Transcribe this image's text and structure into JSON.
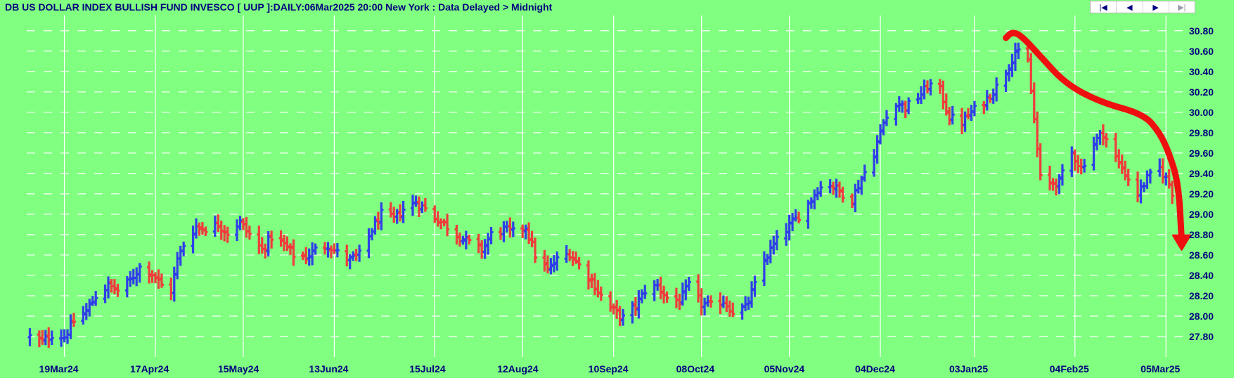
{
  "title": "DB US DOLLAR INDEX BULLISH FUND INVESCO [ UUP ]:DAILY:06Mar2025 20:00 New York : Data Delayed > Midnight",
  "navigation": {
    "first": "|◀",
    "prev": "◀",
    "next": "▶",
    "last": "▶|"
  },
  "colors": {
    "background": "#80ff80",
    "up_bar": "#2f3fe8",
    "down_bar": "#f03c3c",
    "grid": "#ffffff",
    "annotation": "#ee1010",
    "text": "#00007f"
  },
  "chart_data": {
    "type": "ohlc",
    "symbol": "UUP",
    "interval": "daily",
    "grid": true,
    "y_axis_side": "right",
    "ylim": [
      27.6,
      30.95
    ],
    "yticks": [
      27.8,
      28.0,
      28.2,
      28.4,
      28.6,
      28.8,
      29.0,
      29.2,
      29.4,
      29.6,
      29.8,
      30.0,
      30.2,
      30.4,
      30.6,
      30.8
    ],
    "ytick_labels": [
      "27.80",
      "28.00",
      "28.20",
      "28.40",
      "28.60",
      "28.80",
      "29.00",
      "29.20",
      "29.40",
      "29.60",
      "29.80",
      "30.00",
      "30.20",
      "30.40",
      "30.60",
      "30.80"
    ],
    "xlim": [
      "2024-03-07",
      "2025-03-11"
    ],
    "xticks": [
      "2024-03-19",
      "2024-04-17",
      "2024-05-15",
      "2024-06-13",
      "2024-07-15",
      "2024-08-12",
      "2024-09-10",
      "2024-10-08",
      "2024-11-05",
      "2024-12-04",
      "2025-01-03",
      "2025-02-04",
      "2025-03-05"
    ],
    "xtick_labels": [
      "19Mar24",
      "17Apr24",
      "15May24",
      "13Jun24",
      "15Jul24",
      "12Aug24",
      "10Sep24",
      "08Oct24",
      "05Nov24",
      "04Dec24",
      "03Jan25",
      "04Feb25",
      "05Mar25"
    ],
    "closes": [
      [
        "2024-03-08",
        27.8
      ],
      [
        "2024-03-12",
        27.75
      ],
      [
        "2024-03-15",
        27.82
      ],
      [
        "2024-03-19",
        27.8
      ],
      [
        "2024-03-22",
        27.95
      ],
      [
        "2024-03-26",
        28.05
      ],
      [
        "2024-03-29",
        28.2
      ],
      [
        "2024-04-02",
        28.3
      ],
      [
        "2024-04-05",
        28.25
      ],
      [
        "2024-04-09",
        28.35
      ],
      [
        "2024-04-12",
        28.48
      ],
      [
        "2024-04-16",
        28.42
      ],
      [
        "2024-04-19",
        28.3
      ],
      [
        "2024-04-22",
        28.25
      ],
      [
        "2024-04-24",
        28.55
      ],
      [
        "2024-04-26",
        28.7
      ],
      [
        "2024-04-30",
        28.88
      ],
      [
        "2024-05-03",
        28.86
      ],
      [
        "2024-05-07",
        28.9
      ],
      [
        "2024-05-10",
        28.82
      ],
      [
        "2024-05-14",
        28.92
      ],
      [
        "2024-05-17",
        28.8
      ],
      [
        "2024-05-21",
        28.65
      ],
      [
        "2024-05-24",
        28.78
      ],
      [
        "2024-05-28",
        28.7
      ],
      [
        "2024-05-31",
        28.6
      ],
      [
        "2024-06-04",
        28.58
      ],
      [
        "2024-06-07",
        28.65
      ],
      [
        "2024-06-11",
        28.7
      ],
      [
        "2024-06-14",
        28.62
      ],
      [
        "2024-06-18",
        28.55
      ],
      [
        "2024-06-21",
        28.6
      ],
      [
        "2024-06-25",
        28.85
      ],
      [
        "2024-06-28",
        29.0
      ],
      [
        "2024-07-02",
        28.95
      ],
      [
        "2024-07-05",
        29.05
      ],
      [
        "2024-07-09",
        29.12
      ],
      [
        "2024-07-12",
        29.05
      ],
      [
        "2024-07-16",
        28.95
      ],
      [
        "2024-07-19",
        28.88
      ],
      [
        "2024-07-23",
        28.78
      ],
      [
        "2024-07-26",
        28.72
      ],
      [
        "2024-07-30",
        28.65
      ],
      [
        "2024-08-02",
        28.8
      ],
      [
        "2024-08-06",
        28.85
      ],
      [
        "2024-08-09",
        28.82
      ],
      [
        "2024-08-13",
        28.88
      ],
      [
        "2024-08-16",
        28.6
      ],
      [
        "2024-08-20",
        28.45
      ],
      [
        "2024-08-23",
        28.55
      ],
      [
        "2024-08-27",
        28.62
      ],
      [
        "2024-08-30",
        28.5
      ],
      [
        "2024-09-03",
        28.35
      ],
      [
        "2024-09-06",
        28.2
      ],
      [
        "2024-09-10",
        28.05
      ],
      [
        "2024-09-13",
        27.98
      ],
      [
        "2024-09-17",
        28.1
      ],
      [
        "2024-09-20",
        28.25
      ],
      [
        "2024-09-24",
        28.3
      ],
      [
        "2024-09-27",
        28.18
      ],
      [
        "2024-10-01",
        28.15
      ],
      [
        "2024-10-04",
        28.3
      ],
      [
        "2024-10-08",
        28.12
      ],
      [
        "2024-10-11",
        28.1
      ],
      [
        "2024-10-15",
        28.15
      ],
      [
        "2024-10-18",
        28.05
      ],
      [
        "2024-10-22",
        28.08
      ],
      [
        "2024-10-25",
        28.3
      ],
      [
        "2024-10-28",
        28.55
      ],
      [
        "2024-10-31",
        28.7
      ],
      [
        "2024-11-04",
        28.85
      ],
      [
        "2024-11-07",
        28.95
      ],
      [
        "2024-11-11",
        29.1
      ],
      [
        "2024-11-14",
        29.25
      ],
      [
        "2024-11-18",
        29.3
      ],
      [
        "2024-11-21",
        29.22
      ],
      [
        "2024-11-25",
        29.15
      ],
      [
        "2024-11-28",
        29.35
      ],
      [
        "2024-12-02",
        29.6
      ],
      [
        "2024-12-05",
        29.9
      ],
      [
        "2024-12-09",
        30.1
      ],
      [
        "2024-12-12",
        30.05
      ],
      [
        "2024-12-16",
        30.15
      ],
      [
        "2024-12-19",
        30.25
      ],
      [
        "2024-12-22",
        30.3
      ],
      [
        "2024-12-26",
        29.95
      ],
      [
        "2024-12-30",
        29.9
      ],
      [
        "2025-01-02",
        30.0
      ],
      [
        "2025-01-06",
        30.1
      ],
      [
        "2025-01-10",
        30.25
      ],
      [
        "2025-01-13",
        30.4
      ],
      [
        "2025-01-16",
        30.6
      ],
      [
        "2025-01-20",
        30.5
      ],
      [
        "2025-01-24",
        29.35
      ],
      [
        "2025-01-27",
        29.3
      ],
      [
        "2025-01-30",
        29.32
      ],
      [
        "2025-02-03",
        29.6
      ],
      [
        "2025-02-06",
        29.45
      ],
      [
        "2025-02-10",
        29.7
      ],
      [
        "2025-02-13",
        29.8
      ],
      [
        "2025-02-17",
        29.55
      ],
      [
        "2025-02-20",
        29.4
      ],
      [
        "2025-02-24",
        29.2
      ],
      [
        "2025-02-27",
        29.35
      ],
      [
        "2025-03-03",
        29.45
      ],
      [
        "2025-03-06",
        29.3
      ],
      [
        "2025-03-09",
        29.05
      ]
    ]
  },
  "annotation": {
    "type": "freehand-arrow",
    "description": "red hand-drawn arrow curving downward"
  }
}
